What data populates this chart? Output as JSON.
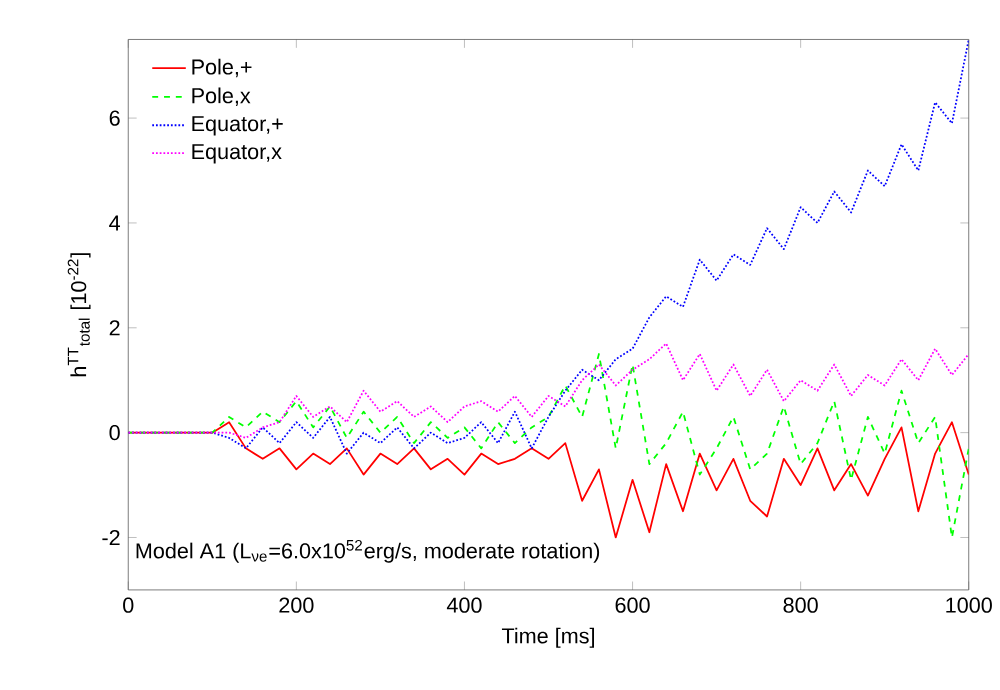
{
  "chart_data": {
    "type": "line",
    "xlabel": "Time [ms]",
    "ylabel": "h$^{TT}$$_{total}$ [10$^{-22}$]",
    "annotations": [
      "Model A1 (L$_{νe}$=6.0x10$^{52}$erg/s, moderate rotation)"
    ],
    "x": [
      0,
      100,
      120,
      140,
      160,
      180,
      200,
      220,
      240,
      260,
      280,
      300,
      320,
      340,
      360,
      380,
      400,
      420,
      440,
      460,
      480,
      500,
      520,
      540,
      560,
      580,
      600,
      620,
      640,
      660,
      680,
      700,
      720,
      740,
      760,
      780,
      800,
      820,
      840,
      860,
      880,
      900,
      920,
      940,
      960,
      980,
      1000
    ],
    "series": [
      {
        "name": "Pole,+",
        "color": "#ff0000",
        "line_style": "solid",
        "values": [
          0,
          0,
          0.2,
          -0.3,
          -0.5,
          -0.3,
          -0.7,
          -0.4,
          -0.6,
          -0.3,
          -0.8,
          -0.4,
          -0.6,
          -0.3,
          -0.7,
          -0.5,
          -0.8,
          -0.4,
          -0.6,
          -0.5,
          -0.3,
          -0.5,
          -0.2,
          -1.3,
          -0.7,
          -2.0,
          -0.9,
          -1.9,
          -0.6,
          -1.5,
          -0.4,
          -1.1,
          -0.5,
          -1.3,
          -1.6,
          -0.5,
          -1.0,
          -0.3,
          -1.1,
          -0.6,
          -1.2,
          -0.5,
          0.1,
          -1.5,
          -0.4,
          0.2,
          -0.8
        ]
      },
      {
        "name": "Pole,x",
        "color": "#00ff00",
        "line_style": "dashed",
        "values": [
          0,
          0,
          0.3,
          0.1,
          0.4,
          0.2,
          0.6,
          0.1,
          0.5,
          -0.1,
          0.4,
          0,
          0.3,
          -0.2,
          0.2,
          -0.1,
          0.1,
          -0.3,
          0.2,
          -0.2,
          0.1,
          0.3,
          0.9,
          0.3,
          1.5,
          -0.3,
          1.3,
          -0.6,
          -0.2,
          0.4,
          -0.8,
          -0.3,
          0.3,
          -0.7,
          -0.4,
          0.5,
          -0.6,
          -0.2,
          0.6,
          -0.9,
          0.3,
          -0.4,
          0.8,
          -0.2,
          0.3,
          -2.0,
          -0.3
        ]
      },
      {
        "name": "Equator,+",
        "color": "#0000ff",
        "line_style": "dotted",
        "values": [
          0,
          0,
          -0.1,
          -0.3,
          0.1,
          -0.2,
          0.2,
          -0.1,
          0.3,
          -0.4,
          0,
          -0.2,
          0.1,
          -0.3,
          0,
          -0.2,
          -0.1,
          0.2,
          -0.2,
          0.4,
          -0.3,
          0.3,
          0.8,
          1.2,
          1.0,
          1.4,
          1.6,
          2.2,
          2.6,
          2.4,
          3.3,
          2.9,
          3.4,
          3.2,
          3.9,
          3.5,
          4.3,
          4.0,
          4.6,
          4.2,
          5.0,
          4.7,
          5.5,
          5.0,
          6.3,
          5.9,
          7.5
        ]
      },
      {
        "name": "Equator,x",
        "color": "#ff00ff",
        "line_style": "dotted",
        "values": [
          0,
          0,
          0,
          -0.1,
          0.1,
          0.2,
          0.7,
          0.3,
          0.5,
          0.2,
          0.8,
          0.4,
          0.6,
          0.3,
          0.5,
          0.2,
          0.5,
          0.6,
          0.4,
          0.7,
          0.3,
          0.7,
          0.5,
          1.0,
          1.3,
          0.9,
          1.2,
          1.4,
          1.7,
          1.0,
          1.5,
          0.8,
          1.3,
          0.7,
          1.2,
          0.6,
          1.0,
          0.8,
          1.3,
          0.7,
          1.1,
          0.9,
          1.4,
          1.0,
          1.6,
          1.1,
          1.5
        ]
      }
    ],
    "xlim": [
      0,
      1000
    ],
    "ylim": [
      -3,
      7.5
    ],
    "xticks": [
      0,
      200,
      400,
      600,
      800,
      1000
    ],
    "yticks": [
      -2,
      0,
      2,
      4,
      6
    ],
    "grid": false,
    "legend": "top left",
    "marker": "none"
  }
}
